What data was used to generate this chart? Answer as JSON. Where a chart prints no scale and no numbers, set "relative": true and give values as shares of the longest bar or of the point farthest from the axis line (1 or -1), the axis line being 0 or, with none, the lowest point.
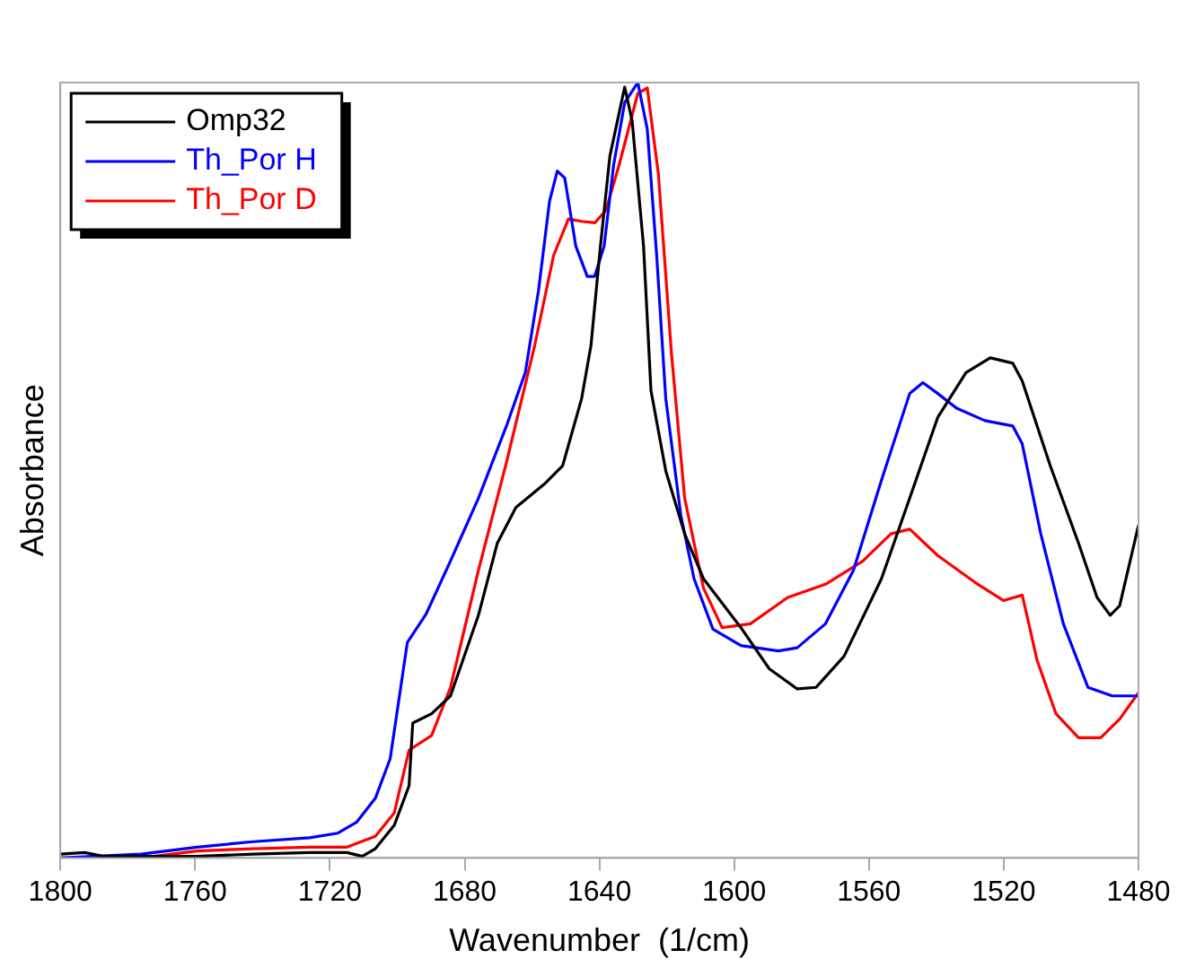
{
  "chart_data": {
    "type": "line",
    "xlabel": "Wavenumber  (1/cm)",
    "ylabel": "Absorbance",
    "relative": true,
    "xlim": [
      1800,
      1480
    ],
    "xticks": [
      1800,
      1760,
      1720,
      1680,
      1640,
      1600,
      1560,
      1520,
      1480
    ],
    "grid": false,
    "legend": "top left",
    "marker": "none",
    "line_style": "solid",
    "series": [
      {
        "name": "Omp32",
        "color": "#000000",
        "x": [
          1800,
          1792.8,
          1787.2,
          1776.1,
          1759.4,
          1742.7,
          1726.0,
          1714.9,
          1710.4,
          1706.5,
          1700.9,
          1696.5,
          1695.4,
          1689.8,
          1684.2,
          1675.9,
          1670.3,
          1664.8,
          1656.4,
          1650.9,
          1645.3,
          1642.5,
          1639.7,
          1636.9,
          1632.5,
          1630.3,
          1626.9,
          1624.7,
          1620.3,
          1614.7,
          1609.1,
          1598.0,
          1589.6,
          1581.3,
          1575.7,
          1567.4,
          1556.3,
          1547.9,
          1539.6,
          1531.2,
          1524.0,
          1517.3,
          1514.5,
          1506.2,
          1497.8,
          1492.3,
          1488.4,
          1485.6,
          1480
        ],
        "values": [
          0.005,
          0.007,
          0.002,
          0.002,
          0.002,
          0.005,
          0.007,
          0.007,
          0.002,
          0.012,
          0.042,
          0.093,
          0.174,
          0.186,
          0.209,
          0.313,
          0.406,
          0.452,
          0.482,
          0.506,
          0.592,
          0.661,
          0.789,
          0.905,
          0.994,
          0.951,
          0.789,
          0.603,
          0.499,
          0.418,
          0.36,
          0.297,
          0.244,
          0.218,
          0.22,
          0.26,
          0.36,
          0.464,
          0.568,
          0.626,
          0.645,
          0.638,
          0.615,
          0.506,
          0.406,
          0.336,
          0.313,
          0.325,
          0.429
        ]
      },
      {
        "name": "Th_Por H",
        "color": "#0000ff",
        "x": [
          1800,
          1776.1,
          1759.4,
          1742.7,
          1726.0,
          1717.6,
          1712.1,
          1706.5,
          1702.1,
          1697.0,
          1691.5,
          1684.2,
          1675.9,
          1667.6,
          1662.0,
          1658.1,
          1654.8,
          1652.5,
          1650.3,
          1647.0,
          1643.6,
          1641.4,
          1638.6,
          1635.8,
          1632.5,
          1628.6,
          1625.8,
          1623.0,
          1620.3,
          1615.8,
          1611.9,
          1606.3,
          1598.0,
          1586.9,
          1581.3,
          1572.9,
          1564.6,
          1556.3,
          1547.9,
          1544.0,
          1539.6,
          1534.0,
          1525.6,
          1517.3,
          1514.5,
          1509.0,
          1502.3,
          1495.0,
          1487.8,
          1480
        ],
        "values": [
          0,
          0.005,
          0.014,
          0.021,
          0.026,
          0.032,
          0.046,
          0.077,
          0.128,
          0.278,
          0.314,
          0.383,
          0.464,
          0.557,
          0.626,
          0.731,
          0.847,
          0.886,
          0.877,
          0.789,
          0.75,
          0.75,
          0.789,
          0.893,
          0.974,
          1,
          0.94,
          0.777,
          0.592,
          0.441,
          0.36,
          0.295,
          0.274,
          0.267,
          0.271,
          0.302,
          0.371,
          0.487,
          0.599,
          0.613,
          0.599,
          0.58,
          0.564,
          0.557,
          0.534,
          0.418,
          0.302,
          0.22,
          0.209,
          0.209
        ]
      },
      {
        "name": "Th_Por D",
        "color": "#ff0000",
        "x": [
          1800,
          1776.1,
          1759.4,
          1742.7,
          1726.0,
          1714.9,
          1706.5,
          1700.9,
          1696.5,
          1689.8,
          1684.2,
          1675.9,
          1667.6,
          1659.2,
          1653.6,
          1649.2,
          1645.3,
          1641.4,
          1638.1,
          1634.2,
          1628.6,
          1625.8,
          1622.5,
          1618.6,
          1614.7,
          1609.1,
          1603.6,
          1595.2,
          1584.1,
          1572.9,
          1561.8,
          1553.5,
          1547.9,
          1539.6,
          1528.4,
          1520.1,
          1514.5,
          1510.1,
          1504.5,
          1497.8,
          1491.2,
          1485.6,
          1480
        ],
        "values": [
          0,
          0,
          0.009,
          0.012,
          0.014,
          0.014,
          0.028,
          0.058,
          0.139,
          0.158,
          0.22,
          0.371,
          0.51,
          0.661,
          0.777,
          0.824,
          0.821,
          0.819,
          0.835,
          0.893,
          0.986,
          0.993,
          0.882,
          0.65,
          0.464,
          0.348,
          0.297,
          0.302,
          0.336,
          0.353,
          0.383,
          0.418,
          0.424,
          0.39,
          0.355,
          0.332,
          0.339,
          0.255,
          0.186,
          0.155,
          0.155,
          0.179,
          0.213
        ]
      }
    ]
  }
}
